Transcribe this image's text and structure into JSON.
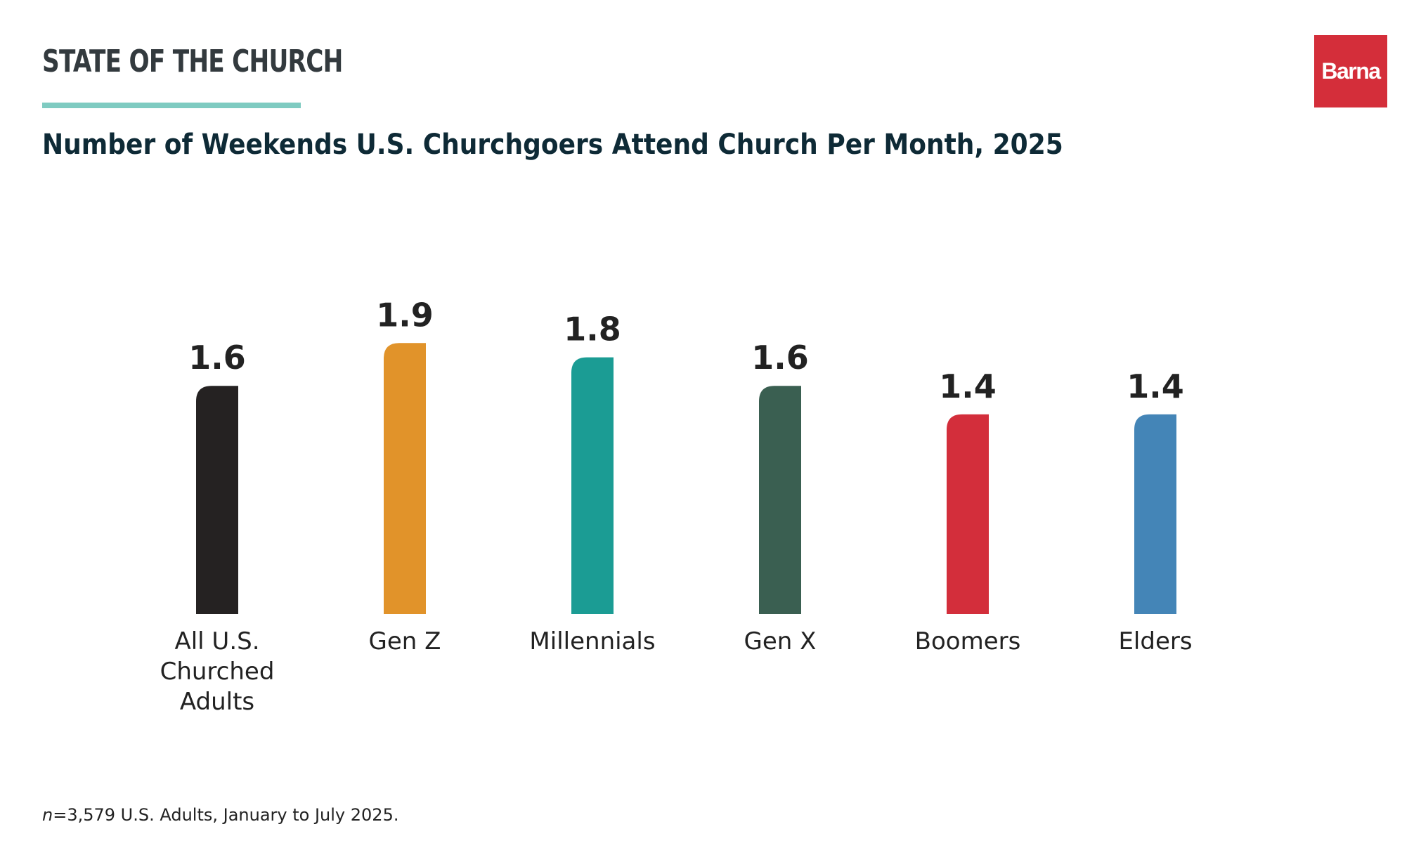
{
  "header": {
    "brand_title": "STATE OF THE CHURCH",
    "logo_text": "Barna",
    "accent_color": "#7fcbc1",
    "logo_color": "#d42e3a"
  },
  "footnote": {
    "n_label": "n",
    "text": "=3,579 U.S. Adults, January to July 2025."
  },
  "chart_data": {
    "type": "bar",
    "title": "Number of Weekends U.S. Churchgoers Attend Church Per Month, 2025",
    "xlabel": "",
    "ylabel": "",
    "ylim": [
      0,
      2.4
    ],
    "grid": false,
    "legend": "none",
    "categories": [
      [
        "All U.S.",
        "Churched",
        "Adults"
      ],
      [
        "Gen Z"
      ],
      [
        "Millennials"
      ],
      [
        "Gen X"
      ],
      [
        "Boomers"
      ],
      [
        "Elders"
      ]
    ],
    "values": [
      1.6,
      1.9,
      1.8,
      1.6,
      1.4,
      1.4
    ],
    "value_labels": [
      "1.6",
      "1.9",
      "1.8",
      "1.6",
      "1.4",
      "1.4"
    ],
    "colors": [
      "#252222",
      "#e1932a",
      "#1b9c94",
      "#3a5f51",
      "#d32e3b",
      "#4485b7"
    ]
  }
}
